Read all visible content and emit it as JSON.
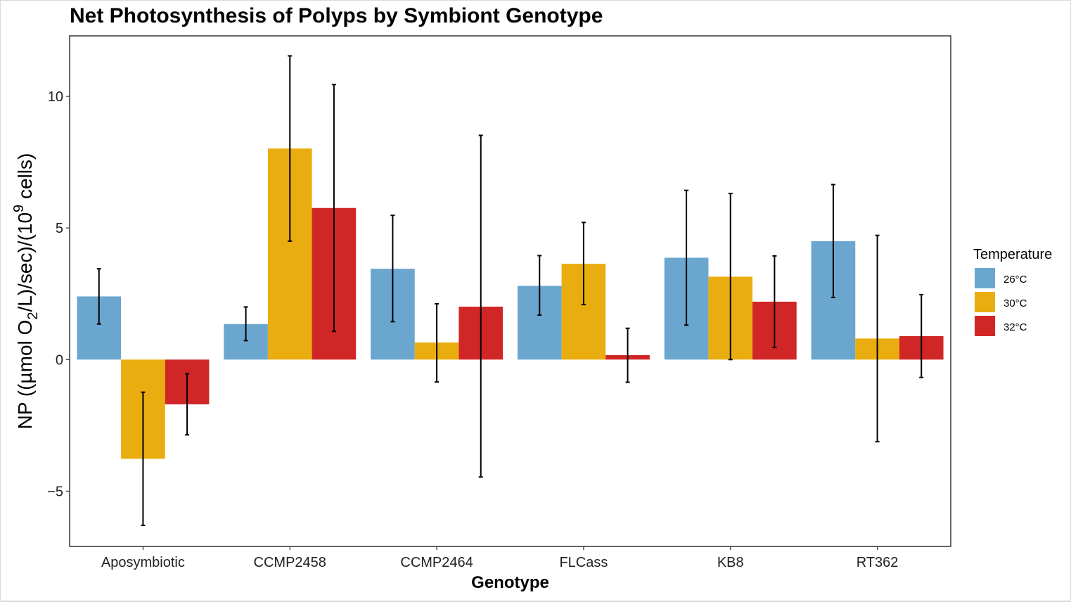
{
  "chart_data": {
    "type": "bar",
    "title": "Net Photosynthesis of Polyps by Symbiont Genotype",
    "xlabel": "Genotype",
    "ylabel": {
      "before_sub": "NP ((µmol O",
      "sub": "2",
      "middle": "/L)/sec)/(10",
      "sup": "9",
      "after_sup": " cells)"
    },
    "ylim": [
      -7.1,
      12.3
    ],
    "yticks": [
      -5,
      0,
      5,
      10
    ],
    "ytick_labels": [
      "−5",
      "0",
      "5",
      "10"
    ],
    "grid": false,
    "legend_position": "right",
    "legend_title": "Temperature",
    "categories": [
      "Aposymbiotic",
      "CCMP2458",
      "CCMP2464",
      "FLCass",
      "KB8",
      "RT362"
    ],
    "series": [
      {
        "name": "26°C",
        "color": "#6BA6CF",
        "values": [
          2.4,
          1.35,
          3.45,
          2.8,
          3.87,
          4.5
        ],
        "err_low": [
          1.35,
          0.72,
          1.44,
          1.69,
          1.31,
          2.36
        ],
        "err_high": [
          3.45,
          2.0,
          5.48,
          3.95,
          6.43,
          6.65
        ]
      },
      {
        "name": "30°C",
        "color": "#EAAD10",
        "values": [
          -3.77,
          8.02,
          0.65,
          3.64,
          3.15,
          0.8
        ],
        "err_low": [
          -6.3,
          4.5,
          -0.85,
          2.09,
          0.0,
          -3.12
        ],
        "err_high": [
          -1.24,
          11.54,
          2.12,
          5.21,
          6.31,
          4.72
        ]
      },
      {
        "name": "32°C",
        "color": "#D12626",
        "values": [
          -1.7,
          5.76,
          2.01,
          0.17,
          2.2,
          0.89
        ],
        "err_low": [
          -2.86,
          1.07,
          -4.46,
          -0.86,
          0.46,
          -0.68
        ],
        "err_high": [
          -0.54,
          10.45,
          8.52,
          1.19,
          3.94,
          2.47
        ]
      }
    ]
  }
}
